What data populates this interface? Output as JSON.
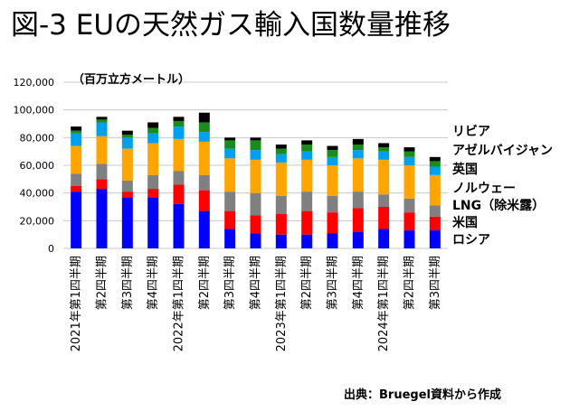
{
  "title": "図-3 EUの天然ガス輸入国数量推移",
  "source": "出典：Bruegel資料から作成",
  "chart_data": {
    "type": "bar",
    "stacked": true,
    "unit_label": "（百万立方メートル）",
    "ylim": [
      0,
      120000
    ],
    "yticks": [
      "0",
      "20,000",
      "40,000",
      "60,000",
      "80,000",
      "100,000",
      "120,000"
    ],
    "grid": true,
    "legend_position": "right",
    "categories": [
      "2021年第1四半期",
      "第2四半期",
      "第3四半期",
      "第4四半期",
      "2022年第1四半期",
      "第2四半期",
      "第3四半期",
      "第4四半期",
      "2023年第1四半期",
      "第2四半期",
      "第3四半期",
      "第4四半期",
      "2024年第1四半期",
      "第2四半期",
      "第3四半期"
    ],
    "series": [
      {
        "name": "ロシア",
        "color": "#0000ff",
        "values": [
          41000,
          43000,
          37000,
          37000,
          32000,
          27000,
          14000,
          11000,
          10000,
          10000,
          11000,
          12000,
          14000,
          13000,
          13000
        ]
      },
      {
        "name": "米国",
        "color": "#ff0000",
        "values": [
          4000,
          7000,
          4000,
          6000,
          14000,
          15000,
          13000,
          13000,
          15000,
          17000,
          15000,
          17000,
          16000,
          13000,
          10000
        ]
      },
      {
        "name": "LNG（除米露）",
        "color": "#808080",
        "values": [
          9000,
          11000,
          8000,
          10000,
          10000,
          11000,
          14000,
          16000,
          13000,
          14000,
          12000,
          12000,
          9000,
          10000,
          8000
        ]
      },
      {
        "name": "ノルウェー",
        "color": "#ffa500",
        "values": [
          20000,
          20000,
          23000,
          23000,
          23000,
          24000,
          24000,
          24000,
          24000,
          23000,
          22000,
          24000,
          25000,
          24000,
          22000
        ]
      },
      {
        "name": "英国",
        "color": "#00a0f0",
        "values": [
          9000,
          10000,
          8000,
          7000,
          9000,
          7000,
          7000,
          7000,
          6000,
          6000,
          6000,
          6000,
          6000,
          6000,
          6000
        ]
      },
      {
        "name": "アゼルバイジャン",
        "color": "#1a8c1a",
        "values": [
          2000,
          2000,
          2000,
          4000,
          4000,
          7000,
          6000,
          7000,
          4000,
          5000,
          5000,
          4000,
          3000,
          4000,
          4000
        ]
      },
      {
        "name": "リビア",
        "color": "#000000",
        "values": [
          3000,
          2000,
          3000,
          4000,
          3000,
          7000,
          2000,
          2000,
          3000,
          3000,
          3000,
          4000,
          3000,
          3000,
          3000
        ]
      }
    ]
  }
}
